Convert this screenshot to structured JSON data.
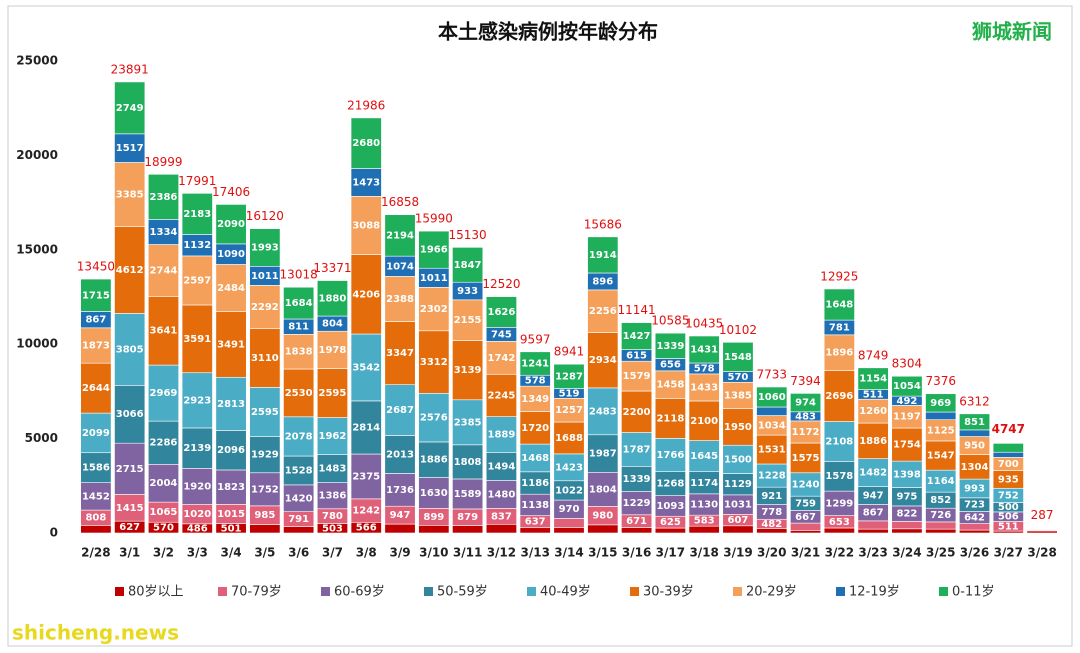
{
  "chart_data": {
    "type": "bar",
    "stacked": true,
    "title": "本土感染病例按年龄分布",
    "watermark": "狮城新闻",
    "footer_watermark": "shicheng.news",
    "categories": [
      "2/28",
      "3/1",
      "3/2",
      "3/3",
      "3/4",
      "3/5",
      "3/6",
      "3/7",
      "3/8",
      "3/9",
      "3/10",
      "3/11",
      "3/12",
      "3/13",
      "3/14",
      "3/15",
      "3/16",
      "3/17",
      "3/18",
      "3/19",
      "3/20",
      "3/21",
      "3/22",
      "3/23",
      "3/24",
      "3/25",
      "3/26",
      "3/27",
      "3/28"
    ],
    "totals": [
      13450,
      23891,
      18999,
      17991,
      17406,
      16120,
      13018,
      13371,
      21986,
      16858,
      15990,
      15130,
      12520,
      9597,
      8941,
      15686,
      11141,
      10585,
      10435,
      10102,
      7733,
      7394,
      12925,
      8749,
      8304,
      7376,
      6312,
      4747,
      287
    ],
    "series": [
      {
        "name": "80岁以上",
        "color": "#c00000",
        "values": [
          406,
          627,
          570,
          486,
          501,
          453,
          338,
          503,
          566,
          472,
          408,
          395,
          462,
          280,
          299,
          432,
          294,
          262,
          361,
          382,
          246,
          140,
          266,
          206,
          222,
          206,
          155,
          100,
          111
        ]
      },
      {
        "name": "70-79岁",
        "color": "#e0607a",
        "values": [
          808,
          1415,
          1065,
          1020,
          1015,
          985,
          791,
          780,
          1242,
          947,
          899,
          879,
          837,
          637,
          476,
          980,
          671,
          625,
          583,
          607,
          482,
          384,
          653,
          436,
          390,
          381,
          342,
          511,
          40
        ]
      },
      {
        "name": "60-69岁",
        "color": "#8064a2",
        "values": [
          1452,
          2715,
          2004,
          1920,
          1823,
          1752,
          1420,
          1386,
          2375,
          1736,
          1630,
          1589,
          1480,
          1138,
          970,
          1804,
          1229,
          1093,
          1130,
          1031,
          778,
          667,
          1299,
          867,
          822,
          726,
          642,
          506,
          30
        ]
      },
      {
        "name": "50-59岁",
        "color": "#31859c",
        "values": [
          1586,
          3066,
          2286,
          2139,
          2096,
          1929,
          1528,
          1483,
          2814,
          2013,
          1886,
          1808,
          1494,
          1186,
          1022,
          1987,
          1339,
          1268,
          1174,
          1129,
          921,
          759,
          1578,
          947,
          975,
          852,
          723,
          500,
          30
        ]
      },
      {
        "name": "40-49岁",
        "color": "#4bacc6",
        "values": [
          2099,
          3805,
          2969,
          2923,
          2813,
          2595,
          2078,
          1962,
          3542,
          2687,
          2576,
          2385,
          1889,
          1468,
          1423,
          2483,
          1787,
          1766,
          1645,
          1500,
          1228,
          1240,
          2108,
          1482,
          1398,
          1164,
          993,
          752,
          25
        ]
      },
      {
        "name": "30-39岁",
        "color": "#e46c0a",
        "values": [
          2644,
          4612,
          3641,
          3591,
          3491,
          3110,
          2530,
          2595,
          4206,
          3347,
          3312,
          3139,
          2245,
          1720,
          1688,
          2934,
          2200,
          2118,
          2100,
          1950,
          1531,
          1575,
          2696,
          1886,
          1754,
          1547,
          1304,
          935,
          20
        ]
      },
      {
        "name": "20-29岁",
        "color": "#f5a05a",
        "values": [
          1873,
          3385,
          2744,
          2597,
          2484,
          2292,
          1838,
          1978,
          3088,
          2388,
          2302,
          2155,
          1742,
          1349,
          1257,
          2256,
          1579,
          1458,
          1433,
          1385,
          1034,
          1172,
          1896,
          1260,
          1197,
          1125,
          950,
          700,
          15
        ]
      },
      {
        "name": "12-19岁",
        "color": "#1f6fb5",
        "values": [
          867,
          1517,
          1334,
          1132,
          1090,
          1011,
          811,
          804,
          1473,
          1074,
          1011,
          933,
          745,
          578,
          519,
          896,
          615,
          656,
          578,
          570,
          453,
          483,
          781,
          511,
          492,
          406,
          352,
          274,
          8
        ]
      },
      {
        "name": "0-11岁",
        "color": "#1fae5a",
        "values": [
          1715,
          2749,
          2386,
          2183,
          2090,
          1993,
          1684,
          1880,
          2680,
          2194,
          1966,
          1847,
          1626,
          1241,
          1287,
          1914,
          1427,
          1339,
          1431,
          1548,
          1060,
          974,
          1648,
          1154,
          1054,
          969,
          851,
          469,
          8
        ]
      }
    ],
    "ylim": [
      0,
      25000
    ],
    "yticks": [
      0,
      5000,
      10000,
      15000,
      20000,
      25000
    ],
    "grid": false
  }
}
